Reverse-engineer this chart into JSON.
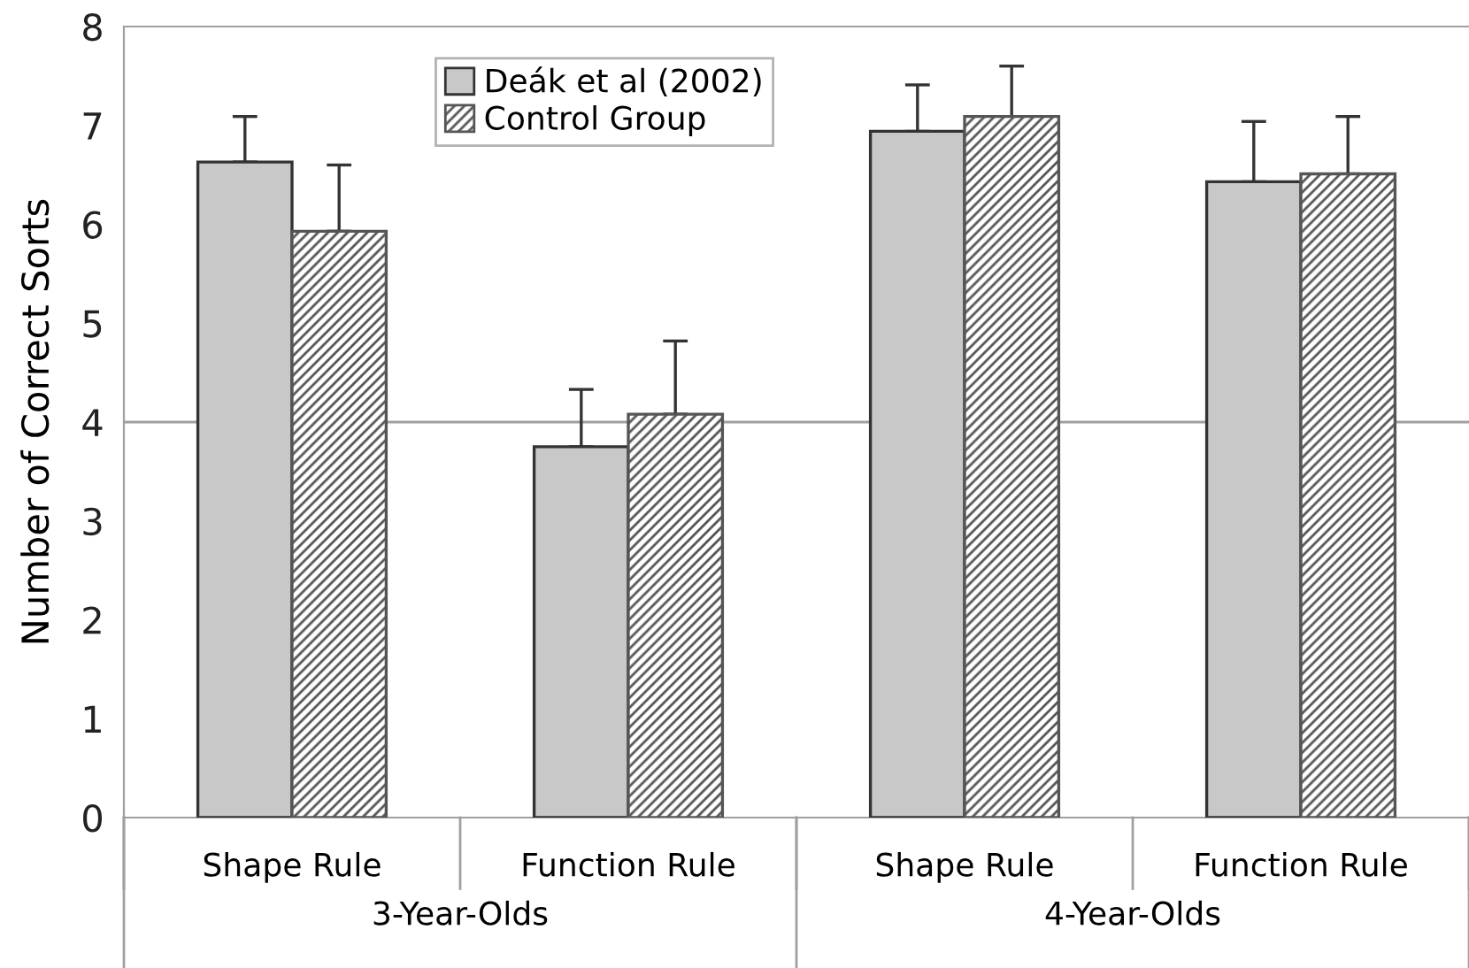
{
  "chart_data": {
    "type": "bar",
    "ylabel": "Number of Correct Sorts",
    "categories": [
      "Shape Rule",
      "Function Rule",
      "Shape Rule",
      "Function Rule"
    ],
    "series": [
      {
        "name": "Deák et al (2002)",
        "color": "#c8c8c8",
        "values": [
          6.63,
          3.75,
          6.94,
          6.43
        ],
        "errors": [
          [
            6.63,
            7.09
          ],
          [
            3.75,
            4.33
          ],
          [
            6.94,
            7.41
          ],
          [
            6.43,
            7.04
          ]
        ]
      },
      {
        "name": "Control Group",
        "color": "#555555",
        "values": [
          5.93,
          4.08,
          7.09,
          6.51
        ],
        "errors": [
          [
            5.93,
            6.6
          ],
          [
            4.08,
            4.82
          ],
          [
            7.09,
            7.6
          ],
          [
            6.51,
            7.09
          ]
        ]
      }
    ],
    "annotations": [
      "3-Year-Olds",
      "4-Year-Olds"
    ],
    "ylim": [
      0,
      8
    ],
    "yticks": [
      0,
      1,
      2,
      3,
      4,
      5,
      6,
      7,
      8
    ],
    "ref_lines": [
      {
        "axis": "y",
        "value": 4,
        "color": "#a0a0a0"
      }
    ],
    "grid": false,
    "legend": "top"
  }
}
